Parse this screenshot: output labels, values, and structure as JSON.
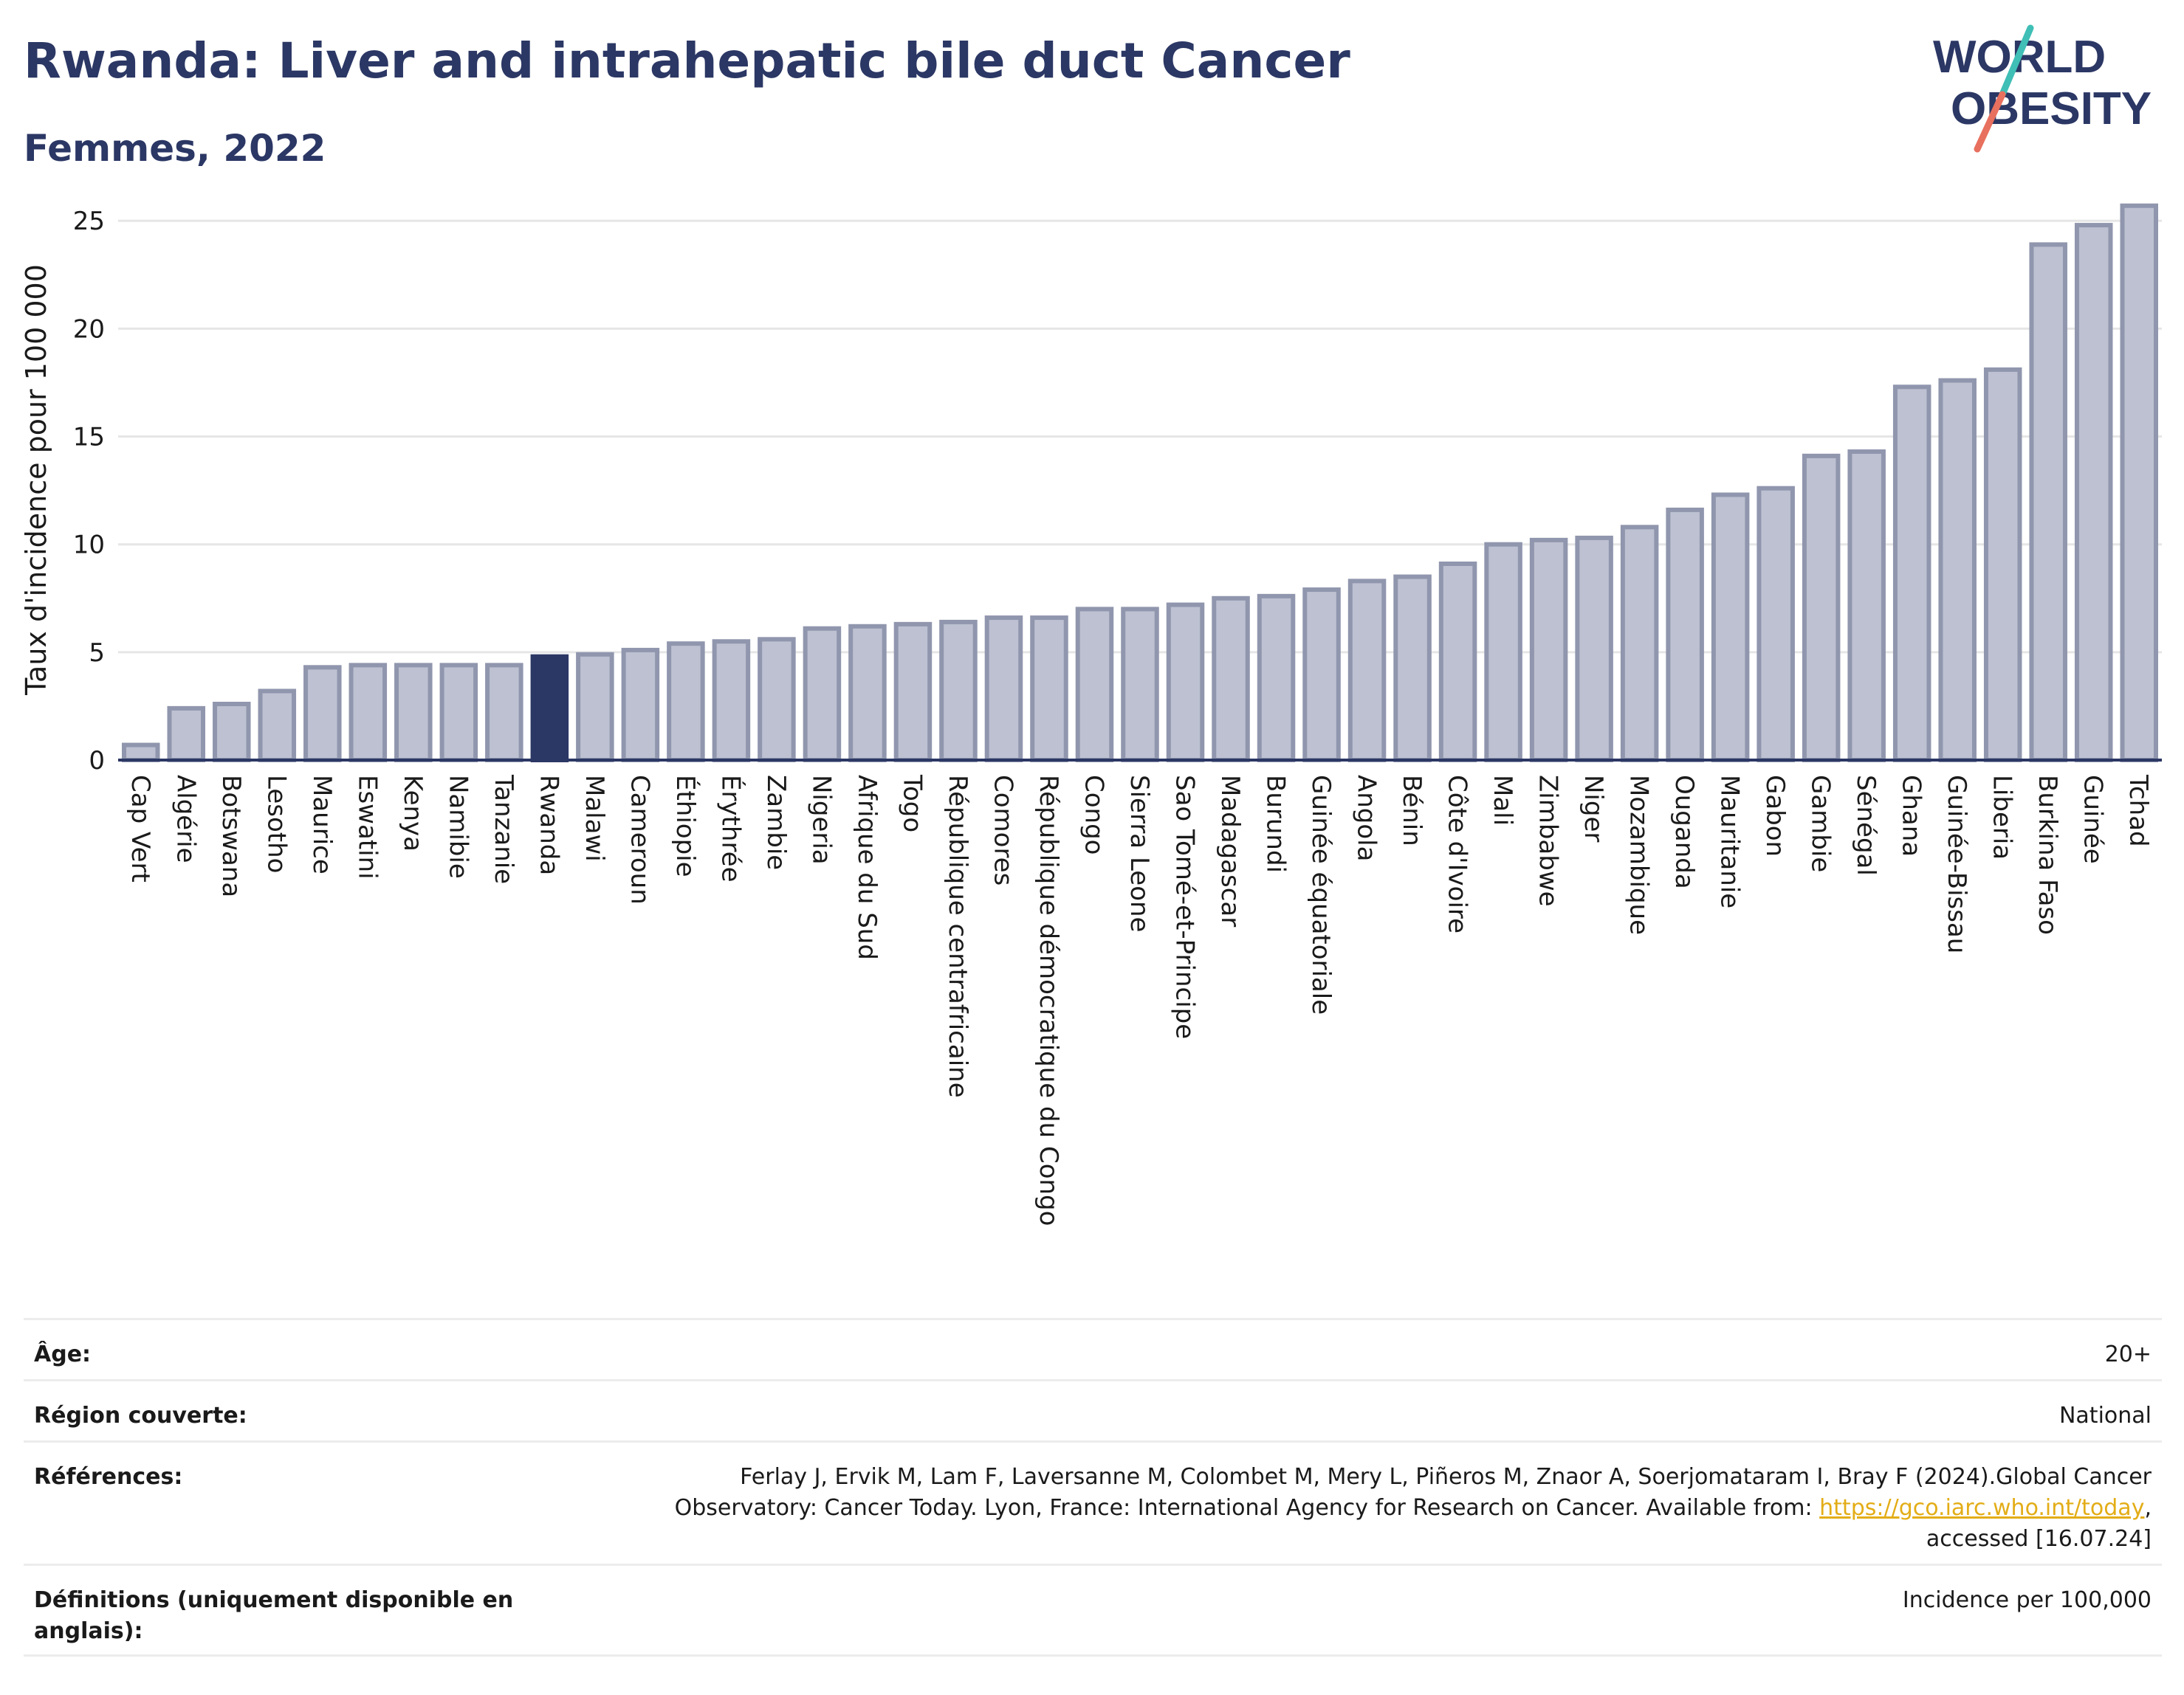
{
  "header": {
    "title": "Rwanda: Liver and intrahepatic bile duct Cancer",
    "subtitle": "Femmes, 2022"
  },
  "logo": {
    "line1": "WORLD",
    "line2": "OBESITY",
    "text_color": "#2b3764",
    "slash_color_top": "#3fbfb6",
    "slash_color_bottom": "#e8705e"
  },
  "colors": {
    "bar_fill": "#bdc1d1",
    "bar_stroke": "#9096ad",
    "highlight": "#2b3764",
    "axis": "#2b3764",
    "grid": "#e6e6e6"
  },
  "chart_data": {
    "type": "bar",
    "ylabel": "Taux d'incidence pour 100 000",
    "xlabel": "",
    "ylim": [
      0,
      26
    ],
    "yticks": [
      0,
      5,
      10,
      15,
      20,
      25
    ],
    "grid": true,
    "highlight_category": "Rwanda",
    "categories": [
      "Cap Vert",
      "Algérie",
      "Botswana",
      "Lesotho",
      "Maurice",
      "Eswatini",
      "Kenya",
      "Namibie",
      "Tanzanie",
      "Rwanda",
      "Malawi",
      "Cameroun",
      "Éthiopie",
      "Érythrée",
      "Zambie",
      "Nigeria",
      "Afrique du Sud",
      "Togo",
      "République centrafricaine",
      "Comores",
      "République démocratique du Congo",
      "Congo",
      "Sierra Leone",
      "Sao Tomé-et-Principe",
      "Madagascar",
      "Burundi",
      "Guinée équatoriale",
      "Angola",
      "Bénin",
      "Côte d'Ivoire",
      "Mali",
      "Zimbabwe",
      "Niger",
      "Mozambique",
      "Ouganda",
      "Mauritanie",
      "Gabon",
      "Gambie",
      "Sénégal",
      "Ghana",
      "Guinée-Bissau",
      "Liberia",
      "Burkina Faso",
      "Guinée",
      "Tchad"
    ],
    "values": [
      0.7,
      2.4,
      2.6,
      3.2,
      4.3,
      4.4,
      4.4,
      4.4,
      4.4,
      4.8,
      4.9,
      5.1,
      5.4,
      5.5,
      5.6,
      6.1,
      6.2,
      6.3,
      6.4,
      6.6,
      6.6,
      7.0,
      7.0,
      7.2,
      7.5,
      7.6,
      7.9,
      8.3,
      8.5,
      9.1,
      10.0,
      10.2,
      10.3,
      10.8,
      11.6,
      12.3,
      12.6,
      14.1,
      14.3,
      17.3,
      17.6,
      18.1,
      23.9,
      24.8,
      25.7
    ]
  },
  "info": {
    "age_label": "Âge:",
    "age_value": "20+",
    "region_label": "Région couverte:",
    "region_value": "National",
    "refs_label": "Références:",
    "refs_text1": "Ferlay J, Ervik M, Lam F, Laversanne M, Colombet M, Mery L, Piñeros M, Znaor A, Soerjomataram I, Bray F (2024).Global Cancer",
    "refs_text2": "Observatory: Cancer Today. Lyon, France: International Agency for Research on Cancer. Available from: ",
    "refs_link": "https://gco.iarc.who.int/today",
    "refs_text3": ",",
    "refs_text4": "accessed [16.07.24]",
    "def_label": "Définitions (uniquement disponible en anglais):",
    "def_value": "Incidence per 100,000"
  }
}
